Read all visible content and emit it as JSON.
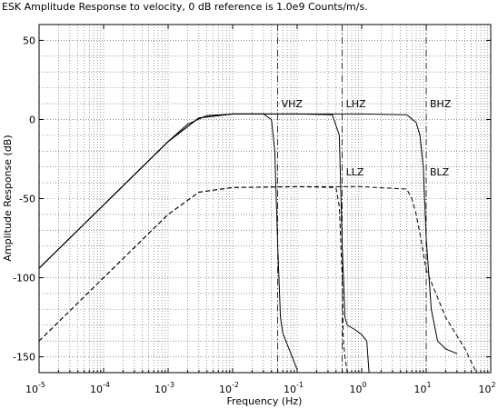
{
  "chart_data": {
    "type": "line",
    "title": "ESK Amplitude Response to velocity, 0 dB reference is 1.0e9 Counts/m/s.",
    "xlabel": "Frequency (Hz)",
    "ylabel": "Amplitude Response (dB)",
    "xscale": "log",
    "xlim": [
      1e-05,
      100
    ],
    "ylim": [
      -160,
      60
    ],
    "grid": true,
    "x_tick_labels": [
      {
        "base": "10",
        "exp": "-5"
      },
      {
        "base": "10",
        "exp": "-4"
      },
      {
        "base": "10",
        "exp": "-3"
      },
      {
        "base": "10",
        "exp": "-2"
      },
      {
        "base": "10",
        "exp": "-1"
      },
      {
        "base": "10",
        "exp": "0"
      },
      {
        "base": "10",
        "exp": "1"
      },
      {
        "base": "10",
        "exp": "2"
      }
    ],
    "y_ticks": [
      50,
      0,
      -50,
      -100,
      -150
    ],
    "y_tick_labels": [
      "50",
      "0",
      "-50",
      "-100",
      "-150"
    ],
    "nyquist_lines": [
      0.05,
      0.5,
      10
    ],
    "annotations": [
      {
        "text": "VHZ",
        "x": 0.05,
        "y": 10
      },
      {
        "text": "LHZ",
        "x": 0.5,
        "y": 10
      },
      {
        "text": "BHZ",
        "x": 10,
        "y": 10
      },
      {
        "text": "LLZ",
        "x": 0.5,
        "y": -33
      },
      {
        "text": "BLZ",
        "x": 10,
        "y": -33
      }
    ],
    "series": [
      {
        "style": "solid",
        "x": [
          1e-05,
          0.0001,
          0.001,
          0.002,
          0.004,
          0.01,
          0.03,
          0.04,
          0.045,
          0.05,
          0.055,
          0.06,
          0.08,
          0.1
        ],
        "y": [
          -94,
          -54,
          -14,
          -3,
          2.5,
          3.5,
          3.5,
          0,
          -20,
          -80,
          -125,
          -135,
          -148,
          -158
        ]
      },
      {
        "style": "solid",
        "x": [
          1e-05,
          0.0001,
          0.001,
          0.003,
          0.01,
          0.1,
          0.35,
          0.45,
          0.5,
          0.55,
          0.6,
          0.8,
          1,
          1.2,
          1.3
        ],
        "y": [
          -94,
          -54,
          -14,
          1,
          3.5,
          3.5,
          3,
          -10,
          -80,
          -125,
          -130,
          -133,
          -136,
          -140,
          -160
        ]
      },
      {
        "style": "solid",
        "x": [
          1e-05,
          0.0001,
          0.001,
          0.003,
          0.01,
          0.1,
          1,
          5,
          7,
          8,
          9,
          10,
          12,
          15,
          20,
          30
        ],
        "y": [
          -94,
          -54,
          -14,
          1,
          3.5,
          3.5,
          3.5,
          3,
          -2,
          -10,
          -30,
          -75,
          -120,
          -140,
          -145,
          -148
        ]
      },
      {
        "style": "dashed",
        "x": [
          1e-05,
          0.0001,
          0.001,
          0.003,
          0.01,
          0.1,
          0.4,
          0.45,
          0.5,
          0.52,
          0.55,
          0.6
        ],
        "y": [
          -140,
          -100,
          -60,
          -46,
          -43,
          -42.5,
          -43,
          -55,
          -100,
          -140,
          -150,
          -160
        ]
      },
      {
        "style": "dashed",
        "x": [
          1e-05,
          0.0001,
          0.001,
          0.003,
          0.01,
          0.1,
          1,
          5,
          6,
          7,
          8,
          10,
          20,
          40,
          60
        ],
        "y": [
          -140,
          -100,
          -60,
          -46,
          -43,
          -42.5,
          -42.5,
          -44,
          -50,
          -60,
          -72,
          -95,
          -125,
          -145,
          -160
        ]
      }
    ]
  }
}
